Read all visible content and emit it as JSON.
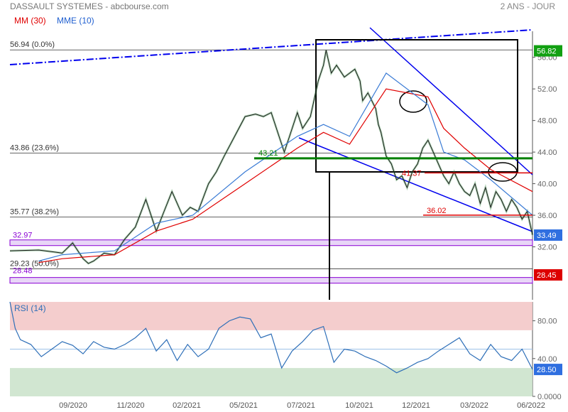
{
  "header": {
    "title": "DASSAULT SYSTEMES - abcbourse.com",
    "period": "2 ANS - JOUR",
    "legend": [
      {
        "label": "MM (30)",
        "color": "#e00000"
      },
      {
        "label": "MME (10)",
        "color": "#1f5fd0"
      }
    ]
  },
  "colors": {
    "price": "#1a1a1a",
    "ma30": "#e00000",
    "ema10": "#3a7bd5",
    "trend": "#0000ee",
    "support_green": "#008000",
    "resistance_red": "#dd0000",
    "zone_purple": "#8a00d4",
    "rsi_line": "#2e6fb8",
    "rsi_upper_band": "#f2c4c4",
    "rsi_lower_band": "#c9e2c9",
    "last_price_tag": "#2f6fe0",
    "last_rsi_tag": "#2f6fe0"
  },
  "fib_levels": [
    {
      "price": 56.94,
      "label": "56.94  (0.0%)"
    },
    {
      "price": 43.86,
      "label": "43.86  (23.6%)"
    },
    {
      "price": 35.77,
      "label": "35.77  (38.2%)"
    },
    {
      "price": 29.23,
      "label": "29.23  (50.0%)"
    }
  ],
  "annotations": {
    "green_level": {
      "price": 43.21,
      "label": "43.21"
    },
    "red_level_high": {
      "price": 41.37,
      "label": "41.37"
    },
    "red_level_low": {
      "price": 36.02,
      "label": "36.02"
    },
    "zone_upper": {
      "price": 32.97,
      "label": "32.97"
    },
    "zone_lower": {
      "price": 28.48,
      "label": "28.48"
    }
  },
  "price_tags": [
    {
      "price": 56.82,
      "label": "56.82",
      "color": "#11a011"
    },
    {
      "price": 33.49,
      "label": "33.49",
      "color": "#2f6fe0"
    },
    {
      "price": 28.45,
      "label": "28.45",
      "color": "#dd0000"
    }
  ],
  "rsi_tag": {
    "value": 28.5,
    "label": "28.50"
  },
  "chart_data": {
    "type": "line",
    "title": "DASSAULT SYSTEMES - abcbourse.com",
    "x_tick_labels": [
      "09/2020",
      "11/2020",
      "02/2021",
      "05/2021",
      "07/2021",
      "10/2021",
      "12/2021",
      "03/2022",
      "06/2022"
    ],
    "y_tick_labels": [
      "56.00",
      "52.00",
      "48.00",
      "44.00",
      "40.00",
      "36.00",
      "32.00"
    ],
    "y_ticks": [
      56,
      52,
      48,
      44,
      40,
      36,
      32
    ],
    "ylim": [
      25.3,
      59.3
    ],
    "series": [
      {
        "name": "MM (30)",
        "x": [
          0.055,
          0.1,
          0.2,
          0.28,
          0.35,
          0.45,
          0.55,
          0.6,
          0.65,
          0.72,
          0.8,
          0.83,
          0.87,
          0.92,
          1.0
        ],
        "values": [
          30.0,
          30.5,
          31.0,
          34.0,
          35.5,
          40.0,
          44.5,
          46.5,
          45.0,
          52.0,
          51.0,
          47.0,
          44.5,
          41.8,
          39.0
        ]
      },
      {
        "name": "MME (10)",
        "x": [
          0.055,
          0.1,
          0.2,
          0.28,
          0.35,
          0.45,
          0.55,
          0.6,
          0.65,
          0.72,
          0.8,
          0.83,
          0.87,
          0.92,
          1.0
        ],
        "values": [
          30.2,
          31.0,
          31.5,
          35.0,
          36.0,
          41.5,
          46.0,
          47.5,
          46.0,
          54.0,
          50.0,
          44.0,
          43.0,
          40.5,
          36.0
        ]
      }
    ],
    "price_path": {
      "x": [
        0.0,
        0.055,
        0.09,
        0.1,
        0.12,
        0.14,
        0.15,
        0.16,
        0.18,
        0.2,
        0.22,
        0.24,
        0.26,
        0.28,
        0.295,
        0.31,
        0.33,
        0.345,
        0.36,
        0.38,
        0.395,
        0.41,
        0.43,
        0.45,
        0.47,
        0.485,
        0.5,
        0.515,
        0.525,
        0.535,
        0.55,
        0.56,
        0.575,
        0.59,
        0.6,
        0.605,
        0.615,
        0.625,
        0.64,
        0.66,
        0.67,
        0.675,
        0.685,
        0.7,
        0.705,
        0.71,
        0.715,
        0.72,
        0.73,
        0.74,
        0.75,
        0.76,
        0.77,
        0.78,
        0.79,
        0.8,
        0.81,
        0.82,
        0.83,
        0.84,
        0.85,
        0.86,
        0.87,
        0.88,
        0.89,
        0.9,
        0.91,
        0.92,
        0.93,
        0.94,
        0.95,
        0.96,
        0.97,
        0.98,
        0.99,
        1.0
      ],
      "values": [
        31.5,
        31.6,
        31.3,
        31.2,
        32.5,
        30.5,
        29.9,
        30.2,
        31.2,
        31.0,
        33.0,
        34.5,
        38.0,
        34.0,
        36.5,
        39.0,
        36.0,
        37.0,
        36.5,
        40.0,
        41.5,
        43.5,
        46.0,
        48.5,
        48.8,
        48.5,
        49.0,
        46.0,
        44.0,
        46.0,
        49.0,
        47.0,
        48.5,
        53.0,
        55.0,
        56.9,
        54.0,
        55.0,
        53.5,
        54.5,
        53.0,
        50.5,
        51.5,
        49.5,
        47.5,
        46.5,
        45.0,
        43.5,
        42.5,
        40.5,
        41.0,
        39.5,
        41.5,
        42.5,
        44.5,
        45.5,
        44.0,
        42.5,
        41.0,
        40.0,
        41.5,
        40.0,
        39.0,
        38.5,
        40.0,
        37.5,
        39.5,
        37.0,
        39.0,
        38.0,
        36.5,
        38.0,
        37.0,
        35.5,
        36.5,
        33.5
      ]
    },
    "rsi": {
      "name": "RSI (14)",
      "y_tick_labels": [
        "80.00",
        "40.00",
        "0.0000"
      ],
      "y_ticks": [
        80,
        40,
        0
      ],
      "ylim": [
        0,
        100
      ],
      "bands": {
        "upper": 70,
        "lower": 30
      },
      "x": [
        0.0,
        0.01,
        0.02,
        0.04,
        0.06,
        0.08,
        0.1,
        0.12,
        0.14,
        0.16,
        0.18,
        0.2,
        0.22,
        0.24,
        0.26,
        0.28,
        0.3,
        0.32,
        0.34,
        0.36,
        0.38,
        0.4,
        0.42,
        0.44,
        0.46,
        0.48,
        0.5,
        0.52,
        0.54,
        0.56,
        0.58,
        0.6,
        0.62,
        0.64,
        0.66,
        0.68,
        0.7,
        0.72,
        0.74,
        0.76,
        0.78,
        0.8,
        0.82,
        0.84,
        0.86,
        0.88,
        0.9,
        0.92,
        0.94,
        0.96,
        0.98,
        1.0
      ],
      "values": [
        100,
        72,
        60,
        55,
        42,
        50,
        58,
        54,
        45,
        58,
        52,
        50,
        55,
        62,
        72,
        48,
        60,
        38,
        55,
        42,
        50,
        72,
        80,
        84,
        82,
        62,
        66,
        30,
        48,
        58,
        70,
        74,
        36,
        50,
        48,
        42,
        38,
        32,
        25,
        30,
        36,
        40,
        48,
        55,
        62,
        45,
        38,
        55,
        42,
        38,
        50,
        28.5
      ]
    }
  }
}
